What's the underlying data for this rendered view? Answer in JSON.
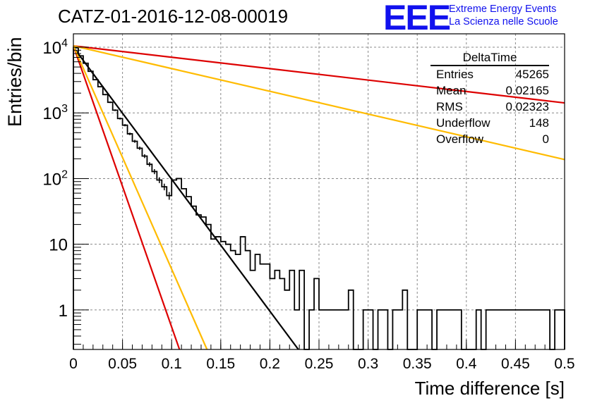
{
  "header": {
    "title": "CATZ-01-2016-12-08-00019",
    "logo_mark": "EEE",
    "logo_line1": "Extreme Energy Events",
    "logo_line2": "La Scienza nelle Scuole"
  },
  "stats_box": {
    "title": "DeltaTime",
    "rows": [
      {
        "label": "Entries",
        "value": "45265"
      },
      {
        "label": "Mean",
        "value": "0.02165"
      },
      {
        "label": "RMS",
        "value": "0.02323"
      },
      {
        "label": "Underflow",
        "value": "148"
      },
      {
        "label": "Overflow",
        "value": "0"
      }
    ]
  },
  "colors": {
    "red": "#dd0000",
    "orange": "#ffbb00",
    "black": "#000000",
    "grid": "#888888"
  },
  "chart_data": {
    "type": "line",
    "xlabel": "Time difference [s]",
    "ylabel": "Entries/bin",
    "xlim": [
      0,
      0.5
    ],
    "ylim": [
      0.25,
      16000
    ],
    "yscale": "log",
    "grid": true,
    "x_ticks": [
      "0",
      "0.05",
      "0.1",
      "0.15",
      "0.2",
      "0.25",
      "0.3",
      "0.35",
      "0.4",
      "0.45",
      "0.5"
    ],
    "y_ticks": [
      {
        "base": "10",
        "exp": "4",
        "value": 10000
      },
      {
        "base": "10",
        "exp": "3",
        "value": 1000
      },
      {
        "base": "10",
        "exp": "2",
        "value": 100
      },
      {
        "base": "10",
        "exp": "",
        "value": 10
      },
      {
        "base": "1",
        "exp": "",
        "value": 1
      }
    ],
    "histogram": {
      "bin_width": 0.005,
      "counts": [
        9800,
        7400,
        5700,
        4300,
        3200,
        2500,
        1900,
        1450,
        1100,
        820,
        650,
        480,
        370,
        290,
        220,
        165,
        128,
        95,
        75,
        55,
        95,
        100,
        70,
        53,
        38,
        28,
        26,
        20,
        12,
        13,
        11,
        10,
        8,
        7,
        13,
        8,
        4,
        7,
        5,
        5,
        3,
        4,
        3,
        2,
        4,
        1,
        4,
        0,
        1,
        3,
        1,
        1,
        1,
        1,
        1,
        1,
        2,
        0,
        0,
        1,
        1,
        0,
        1,
        1,
        0,
        1,
        1,
        2,
        0,
        0,
        1,
        1,
        1,
        0,
        1,
        1,
        1,
        1,
        1,
        0,
        0,
        0,
        1,
        0,
        1,
        1,
        1,
        1,
        1,
        1,
        1,
        1,
        1,
        1,
        1,
        1,
        1,
        0,
        1,
        1
      ]
    },
    "series": [
      {
        "color": "black",
        "x": [
          0,
          0.229
        ],
        "y": [
          10000,
          0.25
        ]
      },
      {
        "color": "red",
        "x": [
          0,
          0.5
        ],
        "y": [
          10500,
          1420
        ]
      },
      {
        "color": "orange",
        "x": [
          0,
          0.5
        ],
        "y": [
          10500,
          195
        ]
      },
      {
        "color": "red",
        "x": [
          0,
          0.108
        ],
        "y": [
          10500,
          0.25
        ]
      },
      {
        "color": "orange",
        "x": [
          0,
          0.136
        ],
        "y": [
          10500,
          0.25
        ]
      }
    ]
  }
}
